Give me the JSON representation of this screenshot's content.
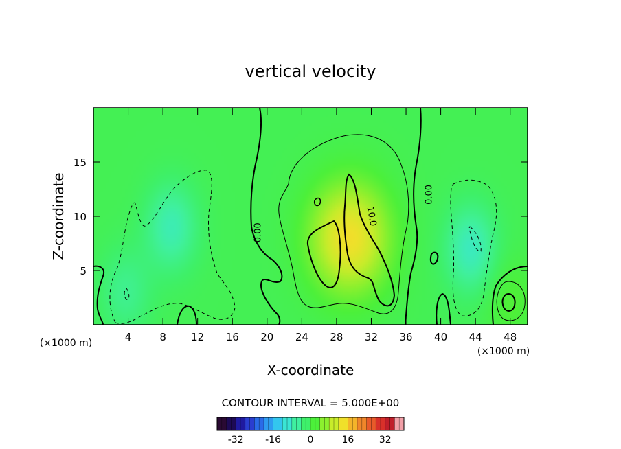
{
  "chart_data": {
    "type": "heatmap",
    "title": "vertical velocity",
    "xlabel": "X-coordinate",
    "ylabel": "Z-coordinate",
    "x_unit_left": "(×1000 m)",
    "x_unit_right": "(×1000 m)",
    "xlim": [
      0,
      50
    ],
    "ylim": [
      0,
      20
    ],
    "x_ticks": [
      "4",
      "8",
      "12",
      "16",
      "20",
      "24",
      "28",
      "32",
      "36",
      "40",
      "44",
      "48"
    ],
    "x_tick_values": [
      4,
      8,
      12,
      16,
      20,
      24,
      28,
      32,
      36,
      40,
      44,
      48
    ],
    "y_ticks": [
      "5",
      "10",
      "15"
    ],
    "y_tick_values": [
      5,
      10,
      15
    ],
    "contour_interval_text": "CONTOUR INTERVAL = 5.000E+00",
    "contour_labels": [
      {
        "text": "0.00",
        "x": 19.0,
        "y": 8.5,
        "angle": -90
      },
      {
        "text": "10.0",
        "x": 32.0,
        "y": 10.0,
        "angle": 80
      },
      {
        "text": "0.00",
        "x": 38.7,
        "y": 12.0,
        "angle": -90
      }
    ],
    "field_features": [
      {
        "kind": "downdraft",
        "x": 9,
        "y": 9,
        "amplitude": -8
      },
      {
        "kind": "downdraft",
        "x": 43.5,
        "y": 7,
        "amplitude": -9
      },
      {
        "kind": "downdraft",
        "x": 3.7,
        "y": 3,
        "amplitude": -5
      },
      {
        "kind": "updraft",
        "x": 29.5,
        "y": 8,
        "amplitude": 16
      },
      {
        "kind": "updraft",
        "x": 48,
        "y": 2.3,
        "amplitude": 3
      }
    ],
    "colorbar": {
      "min": -40,
      "max": 40,
      "ticks": [
        "-32",
        "-16",
        "0",
        "16",
        "32"
      ],
      "tick_values": [
        -32,
        -16,
        0,
        16,
        32
      ],
      "colors": [
        "#2a0a33",
        "#1d0a55",
        "#1f1aa0",
        "#2a3ed0",
        "#2a6be8",
        "#2e9bf0",
        "#33c6ee",
        "#3ae6d4",
        "#3ff0a0",
        "#3ef06a",
        "#4cf03a",
        "#8cf02e",
        "#c8ec2a",
        "#f0e02a",
        "#f4b42a",
        "#f0862a",
        "#e85a2a",
        "#d8302a",
        "#c01e2a",
        "#f2a0a8"
      ]
    }
  }
}
